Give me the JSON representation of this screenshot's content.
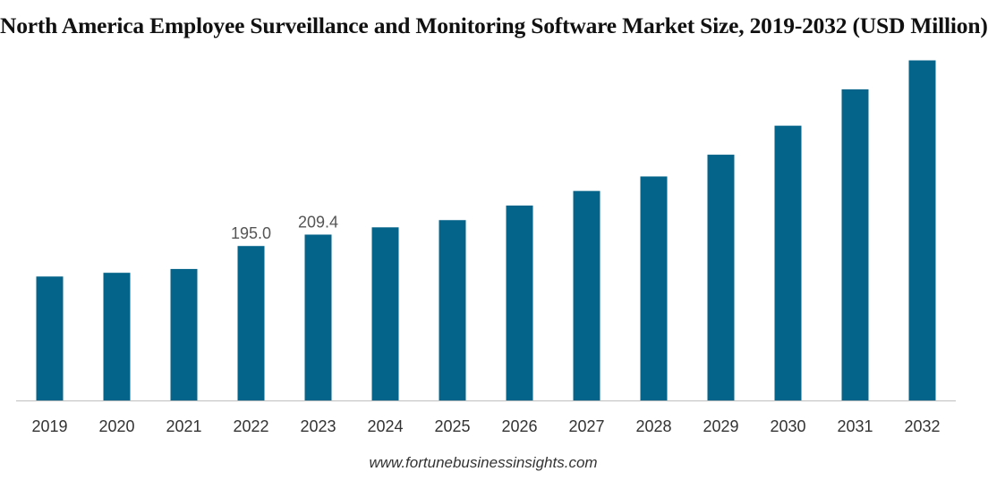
{
  "chart_data": {
    "type": "bar",
    "title": "North America Employee Surveillance and Monitoring Software Market Size, 2019-2032 (USD Million)",
    "xlabel": "",
    "ylabel": "",
    "categories": [
      "2019",
      "2020",
      "2021",
      "2022",
      "2023",
      "2024",
      "2025",
      "2026",
      "2027",
      "2028",
      "2029",
      "2030",
      "2031",
      "2032"
    ],
    "values": [
      156.5,
      161.2,
      166.0,
      195.0,
      209.4,
      218.6,
      227.7,
      246.1,
      264.5,
      282.8,
      310.3,
      346.9,
      392.8,
      429.4
    ],
    "data_labels": [
      {
        "category": "2022",
        "text": "195.0"
      },
      {
        "category": "2023",
        "text": "209.4"
      }
    ],
    "ylim": [
      0,
      430
    ],
    "grid": false,
    "legend": "none",
    "bar_color": "#04648a",
    "axis_color": "#bfbfbf"
  },
  "source": "www.fortunebusinessinsights.com"
}
